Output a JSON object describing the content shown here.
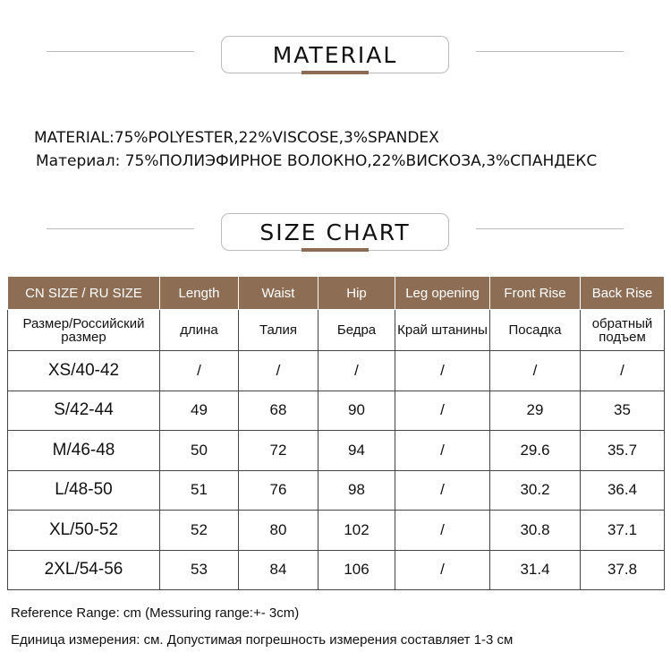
{
  "material_title": "MATERIAL",
  "material_en": "MATERIAL:75%POLYESTER,22%VISCOSE,3%SPANDEX",
  "material_ru": "Материал: 75%ПОЛИЭФИРНОЕ ВОЛОКНО,22%ВИСКОЗА,3%СПАНДЕКС",
  "size_title": "SIZE CHART",
  "accent_color": "#8d6e55",
  "table": {
    "headers": [
      "CN SIZE / RU SIZE",
      "Length",
      "Waist",
      "Hip",
      "Leg opening",
      "Front Rise",
      "Back Rise"
    ],
    "headers_ru": [
      "Размер/Российский размер",
      "длина",
      "Талия",
      "Бедра",
      "Край штанины",
      "Посадка",
      "обратный подъем"
    ],
    "rows": [
      [
        "XS/40-42",
        "/",
        "/",
        "/",
        "/",
        "/",
        "/"
      ],
      [
        "S/42-44",
        "49",
        "68",
        "90",
        "/",
        "29",
        "35"
      ],
      [
        "M/46-48",
        "50",
        "72",
        "94",
        "/",
        "29.6",
        "35.7"
      ],
      [
        "L/48-50",
        "51",
        "76",
        "98",
        "/",
        "30.2",
        "36.4"
      ],
      [
        "XL/50-52",
        "52",
        "80",
        "102",
        "/",
        "30.8",
        "37.1"
      ],
      [
        "2XL/54-56",
        "53",
        "84",
        "106",
        "/",
        "31.4",
        "37.8"
      ]
    ]
  },
  "footer_en": "Reference Range: cm (Messuring range:+- 3cm)",
  "footer_ru": "Единица измерения: см. Допустимая погрешность измерения составляет 1-3 см"
}
